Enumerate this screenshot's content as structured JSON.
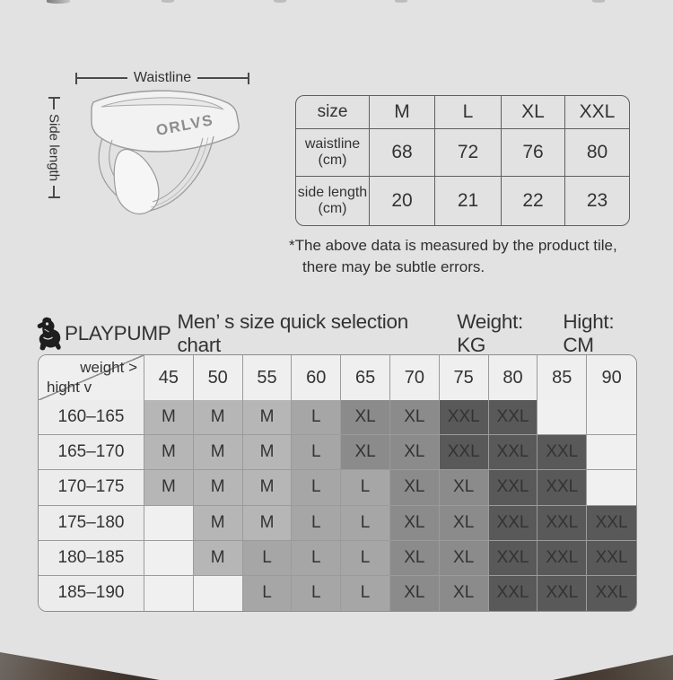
{
  "page": {
    "bg": "#e2e2e2"
  },
  "icons": {
    "logo": "playpump-mascot-icon"
  },
  "measure_diagram": {
    "waistline_label": "Waistline",
    "side_length_label": "Side length",
    "brand_on_band": "ORLVS"
  },
  "size_table": {
    "header": [
      "size",
      "M",
      "L",
      "XL",
      "XXL"
    ],
    "rows": [
      {
        "label": "waistline",
        "unit": "(cm)",
        "values": [
          "68",
          "72",
          "76",
          "80"
        ]
      },
      {
        "label": "side length",
        "unit": "(cm)",
        "values": [
          "20",
          "21",
          "22",
          "23"
        ]
      }
    ]
  },
  "note": {
    "line1": "*The above data is measured by the product tile,",
    "line2": "there may be subtle errors."
  },
  "selection_chart": {
    "brand": "PLAYPUMP",
    "title": "Men’ s size quick selection chart",
    "weight_label": "Weight: KG",
    "hight_label": "Hight: CM",
    "corner": {
      "top": "weight >",
      "bottom": "hight v"
    },
    "weights": [
      "45",
      "50",
      "55",
      "60",
      "65",
      "70",
      "75",
      "80",
      "85",
      "90"
    ],
    "rows": [
      {
        "height": "160–165",
        "sizes": [
          "M",
          "M",
          "M",
          "L",
          "XL",
          "XL",
          "XXL",
          "XXL",
          "",
          ""
        ]
      },
      {
        "height": "165–170",
        "sizes": [
          "M",
          "M",
          "M",
          "L",
          "XL",
          "XL",
          "XXL",
          "XXL",
          "XXL",
          ""
        ]
      },
      {
        "height": "170–175",
        "sizes": [
          "M",
          "M",
          "M",
          "L",
          "L",
          "XL",
          "XL",
          "XXL",
          "XXL",
          ""
        ]
      },
      {
        "height": "175–180",
        "sizes": [
          "",
          "M",
          "M",
          "L",
          "L",
          "XL",
          "XL",
          "XXL",
          "XXL",
          "XXL"
        ]
      },
      {
        "height": "180–185",
        "sizes": [
          "",
          "M",
          "L",
          "L",
          "L",
          "XL",
          "XL",
          "XXL",
          "XXL",
          "XXL"
        ]
      },
      {
        "height": "185–190",
        "sizes": [
          "",
          "",
          "L",
          "L",
          "L",
          "XL",
          "XL",
          "XXL",
          "XXL",
          "XXL"
        ]
      }
    ],
    "size_colors": {
      "M": "#b6b6b6",
      "L": "#a6a6a6",
      "XL": "#8b8b8b",
      "XXL": "#595959",
      "": "#f0f0f0"
    }
  }
}
